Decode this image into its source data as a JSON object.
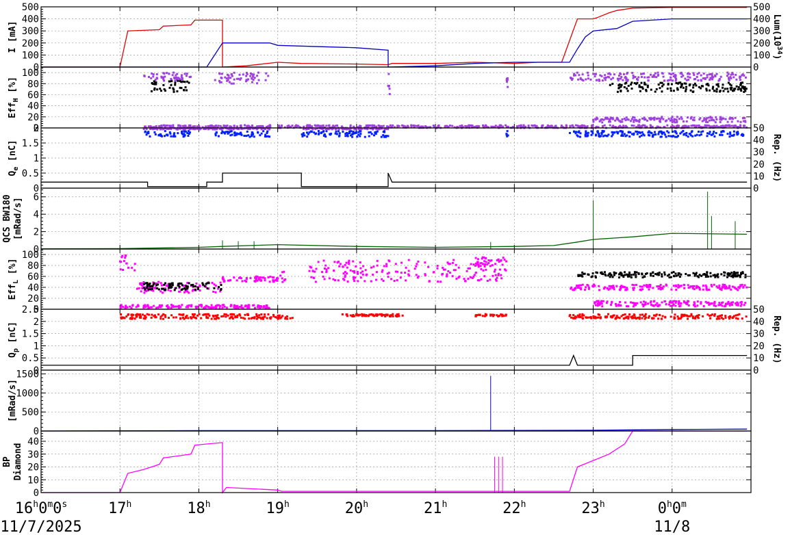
{
  "chart_data": {
    "type": "line",
    "x_axis": {
      "unit": "hour",
      "range": [
        16,
        25
      ],
      "ticks": [
        {
          "t": 16,
          "label": "16",
          "sup": "h",
          "extra": "0",
          "extra_sup": "m",
          "extra2": "0",
          "extra2_sup": "s"
        },
        {
          "t": 17,
          "label": "17",
          "sup": "h"
        },
        {
          "t": 18,
          "label": "18",
          "sup": "h"
        },
        {
          "t": 19,
          "label": "19",
          "sup": "h"
        },
        {
          "t": 20,
          "label": "20",
          "sup": "h"
        },
        {
          "t": 21,
          "label": "21",
          "sup": "h"
        },
        {
          "t": 22,
          "label": "22",
          "sup": "h"
        },
        {
          "t": 23,
          "label": "23",
          "sup": "h"
        },
        {
          "t": 24,
          "label": "0",
          "sup": "h",
          "extra": "0",
          "extra_sup": "m"
        }
      ],
      "dates": [
        {
          "t": 16,
          "label": "11/7/2025"
        },
        {
          "t": 24,
          "label": "11/8"
        }
      ],
      "grid": true
    },
    "panels": [
      {
        "id": "current",
        "ylabel": "I [mA]",
        "ylim": [
          0,
          500
        ],
        "yticks": [
          0,
          100,
          200,
          300,
          400,
          500
        ],
        "right_label": "Lum(10",
        "right_label_sup": "34",
        "right_label_end": ")",
        "right_ylim": [
          0,
          500
        ],
        "right_yticks": [
          0,
          100,
          200,
          300,
          400,
          500
        ],
        "series": [
          {
            "color": "#e00000",
            "kind": "step",
            "points": [
              [
                16.0,
                0
              ],
              [
                17.0,
                0
              ],
              [
                17.1,
                300
              ],
              [
                17.5,
                310
              ],
              [
                17.55,
                340
              ],
              [
                17.9,
                350
              ],
              [
                17.95,
                390
              ],
              [
                18.3,
                390
              ],
              [
                18.3,
                0
              ],
              [
                18.6,
                10
              ],
              [
                19.0,
                40
              ],
              [
                19.3,
                30
              ],
              [
                20.0,
                25
              ],
              [
                20.4,
                20
              ],
              [
                20.45,
                30
              ],
              [
                21.0,
                30
              ],
              [
                21.5,
                40
              ],
              [
                22.0,
                30
              ],
              [
                22.3,
                40
              ],
              [
                22.6,
                40
              ],
              [
                22.8,
                400
              ],
              [
                23.0,
                400
              ],
              [
                23.05,
                410
              ],
              [
                23.2,
                450
              ],
              [
                23.3,
                470
              ],
              [
                23.5,
                490
              ],
              [
                24.0,
                495
              ],
              [
                24.95,
                495
              ]
            ]
          },
          {
            "color": "#0000c0",
            "kind": "step",
            "points": [
              [
                16.0,
                0
              ],
              [
                18.1,
                0
              ],
              [
                18.2,
                100
              ],
              [
                18.3,
                200
              ],
              [
                18.9,
                200
              ],
              [
                19.0,
                180
              ],
              [
                20.0,
                160
              ],
              [
                20.4,
                140
              ],
              [
                20.4,
                0
              ],
              [
                21.0,
                10
              ],
              [
                21.5,
                30
              ],
              [
                22.0,
                40
              ],
              [
                22.7,
                40
              ],
              [
                22.8,
                150
              ],
              [
                22.9,
                250
              ],
              [
                23.0,
                300
              ],
              [
                23.3,
                320
              ],
              [
                23.5,
                380
              ],
              [
                24.0,
                400
              ],
              [
                24.95,
                400
              ]
            ]
          }
        ]
      },
      {
        "id": "eff_h",
        "ylabel": "Eff",
        "ylabel_sub": "H",
        "ylabel_end": " [%]",
        "ylim": [
          0,
          110
        ],
        "yticks": [
          0,
          20,
          40,
          60,
          80,
          100
        ],
        "series": [
          {
            "color": "#a040e0",
            "kind": "scatter",
            "clusters": [
              [
                17.3,
                17.9,
                85,
                100
              ],
              [
                18.2,
                18.9,
                80,
                100
              ],
              [
                20.4,
                20.42,
                60,
                100
              ],
              [
                21.9,
                21.92,
                60,
                90
              ],
              [
                22.7,
                24.95,
                85,
                100
              ],
              [
                17.3,
                24.95,
                0,
                5
              ],
              [
                23.0,
                24.95,
                10,
                20
              ]
            ]
          },
          {
            "color": "#000000",
            "kind": "scatter",
            "clusters": [
              [
                17.4,
                17.9,
                65,
                85
              ],
              [
                23.2,
                24.95,
                65,
                82
              ]
            ]
          }
        ]
      },
      {
        "id": "qe",
        "ylabel": "Q",
        "ylabel_sub": "e",
        "ylabel_end": " [nC]",
        "ylim": [
          0,
          2.0
        ],
        "yticks": [
          0,
          0.5,
          1,
          1.5,
          2
        ],
        "right_label": "Rep. (Hz)",
        "right_ylim": [
          0,
          50
        ],
        "right_yticks": [
          0,
          10,
          20,
          30,
          40,
          50
        ],
        "series": [
          {
            "color": "#0020ff",
            "kind": "scatter",
            "clusters": [
              [
                17.3,
                17.9,
                1.7,
                1.9
              ],
              [
                18.2,
                18.9,
                1.7,
                1.9
              ],
              [
                19.3,
                20.4,
                1.7,
                1.9
              ],
              [
                21.9,
                21.92,
                1.7,
                1.9
              ],
              [
                22.7,
                24.95,
                1.7,
                1.9
              ]
            ]
          },
          {
            "color": "#a040e0",
            "kind": "scatter",
            "clusters": [
              [
                17.3,
                18.9,
                1.95,
                2.0
              ],
              [
                19.3,
                20.4,
                1.95,
                2.0
              ]
            ]
          },
          {
            "color": "#000000",
            "kind": "step",
            "points": [
              [
                16.0,
                0.2
              ],
              [
                17.35,
                0.2
              ],
              [
                17.35,
                0.05
              ],
              [
                18.1,
                0.05
              ],
              [
                18.1,
                0.2
              ],
              [
                18.3,
                0.2
              ],
              [
                18.3,
                0.5
              ],
              [
                19.3,
                0.5
              ],
              [
                19.3,
                0.05
              ],
              [
                20.4,
                0.05
              ],
              [
                20.4,
                0.5
              ],
              [
                20.45,
                0.2
              ],
              [
                24.95,
                0.2
              ]
            ]
          }
        ]
      },
      {
        "id": "qcs",
        "ylabel": "QCS BW180",
        "ylabel2": "[mRad/s]",
        "ylim": [
          0,
          7
        ],
        "yticks": [
          0,
          2,
          4,
          6
        ],
        "series": [
          {
            "color": "#006000",
            "kind": "line",
            "points": [
              [
                16.0,
                0.02
              ],
              [
                17.0,
                0.05
              ],
              [
                18.0,
                0.2
              ],
              [
                18.3,
                0.3
              ],
              [
                19.0,
                0.5
              ],
              [
                20.0,
                0.3
              ],
              [
                21.0,
                0.2
              ],
              [
                22.0,
                0.3
              ],
              [
                22.5,
                0.4
              ],
              [
                22.8,
                0.8
              ],
              [
                23.0,
                1.1
              ],
              [
                23.5,
                1.4
              ],
              [
                24.0,
                1.8
              ],
              [
                24.95,
                1.7
              ]
            ],
            "spikes": [
              [
                23.0,
                5.6
              ],
              [
                24.45,
                6.6
              ],
              [
                24.5,
                3.8
              ],
              [
                24.8,
                3.2
              ],
              [
                21.7,
                0.8
              ],
              [
                18.3,
                1.0
              ],
              [
                18.5,
                0.9
              ],
              [
                18.7,
                0.9
              ]
            ]
          }
        ]
      },
      {
        "id": "eff_l",
        "ylabel": "Eff",
        "ylabel_sub": "L",
        "ylabel_end": " [%]",
        "ylim": [
          0,
          110
        ],
        "yticks": [
          0,
          20,
          40,
          60,
          80,
          100
        ],
        "series": [
          {
            "color": "#ff00ff",
            "kind": "scatter",
            "clusters": [
              [
                17.0,
                17.2,
                70,
                100
              ],
              [
                17.2,
                18.3,
                30,
                50
              ],
              [
                18.3,
                19.0,
                50,
                60
              ],
              [
                19.0,
                19.1,
                40,
                70
              ],
              [
                19.4,
                21.9,
                50,
                90
              ],
              [
                21.5,
                21.9,
                80,
                95
              ],
              [
                22.7,
                24.95,
                35,
                45
              ],
              [
                23.0,
                24.95,
                5,
                15
              ],
              [
                17.0,
                18.9,
                2,
                8
              ]
            ]
          },
          {
            "color": "#000000",
            "kind": "scatter",
            "clusters": [
              [
                17.3,
                18.3,
                35,
                48
              ],
              [
                22.8,
                24.95,
                58,
                68
              ]
            ]
          }
        ]
      },
      {
        "id": "qp",
        "ylabel": "Q",
        "ylabel_sub": "p",
        "ylabel_end": " [nC]",
        "ylim": [
          0,
          2.5
        ],
        "yticks": [
          0,
          0.5,
          1,
          1.5,
          2,
          2.5
        ],
        "right_label": "Rep. (Hz)",
        "right_ylim": [
          0,
          50
        ],
        "right_yticks": [
          0,
          10,
          20,
          30,
          40,
          50
        ],
        "series": [
          {
            "color": "#ff0000",
            "kind": "scatter",
            "clusters": [
              [
                17.0,
                18.3,
                2.1,
                2.3
              ],
              [
                18.3,
                19.2,
                2.1,
                2.3
              ],
              [
                19.8,
                20.6,
                2.2,
                2.3
              ],
              [
                21.5,
                21.9,
                2.2,
                2.3
              ],
              [
                22.7,
                24.95,
                2.1,
                2.3
              ]
            ]
          },
          {
            "color": "#000000",
            "kind": "step",
            "points": [
              [
                16.0,
                0.2
              ],
              [
                22.7,
                0.2
              ],
              [
                22.75,
                0.6
              ],
              [
                22.8,
                0.2
              ],
              [
                23.5,
                0.2
              ],
              [
                23.5,
                0.6
              ],
              [
                24.95,
                0.6
              ]
            ]
          }
        ]
      },
      {
        "id": "diamond",
        "ylabel": "[mRad/s]",
        "ylim": [
          0,
          1600
        ],
        "yticks": [
          0,
          500,
          1000,
          1500
        ],
        "series": [
          {
            "color": "#0000c0",
            "kind": "line",
            "points": [
              [
                16.0,
                0
              ],
              [
                17.0,
                5
              ],
              [
                18.0,
                10
              ],
              [
                21.0,
                10
              ],
              [
                22.0,
                15
              ],
              [
                23.0,
                20
              ],
              [
                24.0,
                40
              ],
              [
                24.95,
                50
              ]
            ],
            "spikes": [
              [
                21.7,
                1450
              ]
            ]
          }
        ]
      },
      {
        "id": "bp",
        "ylabel": "BP",
        "ylabel2": "Diamond",
        "ylim": [
          0,
          48
        ],
        "yticks": [
          0,
          10,
          20,
          30,
          40
        ],
        "series": [
          {
            "color": "#ff00ff",
            "kind": "line",
            "points": [
              [
                16.0,
                0
              ],
              [
                17.0,
                0
              ],
              [
                17.1,
                15
              ],
              [
                17.3,
                18
              ],
              [
                17.5,
                22
              ],
              [
                17.55,
                27
              ],
              [
                17.9,
                30
              ],
              [
                17.95,
                37
              ],
              [
                18.3,
                39
              ],
              [
                18.3,
                0
              ],
              [
                18.35,
                4
              ],
              [
                19.0,
                2
              ],
              [
                19.05,
                1
              ],
              [
                22.7,
                1
              ],
              [
                22.8,
                20
              ],
              [
                23.0,
                25
              ],
              [
                23.2,
                30
              ],
              [
                23.4,
                38
              ],
              [
                23.5,
                48
              ],
              [
                24.95,
                48
              ]
            ],
            "spikes": [
              [
                21.75,
                28
              ],
              [
                21.8,
                28
              ],
              [
                21.85,
                28
              ]
            ]
          }
        ]
      }
    ]
  }
}
